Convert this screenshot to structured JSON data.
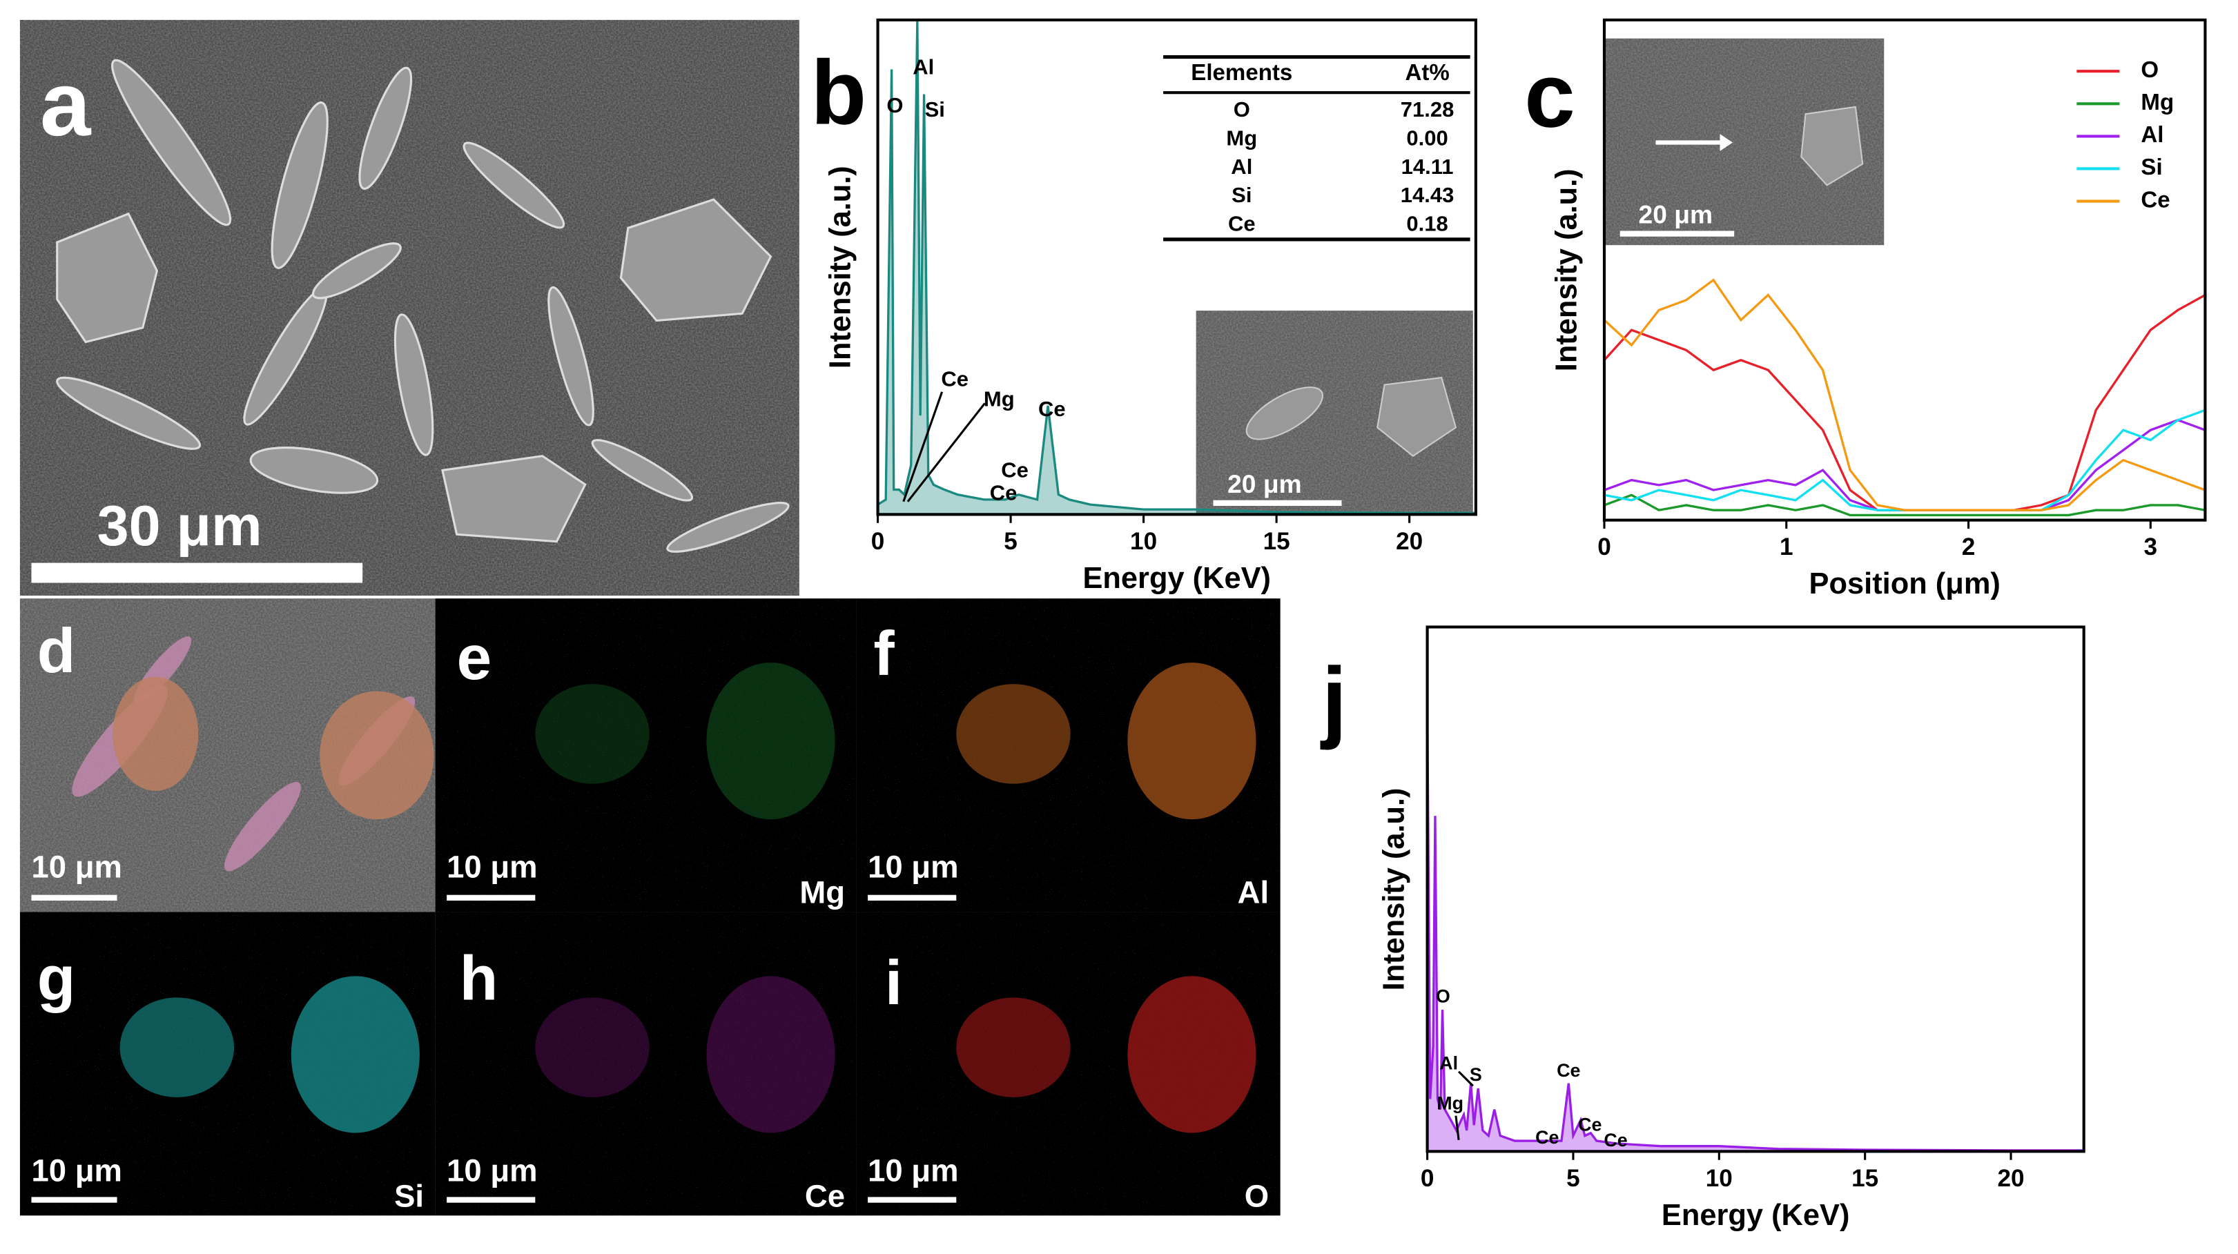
{
  "panel_labels": [
    "a",
    "b",
    "c",
    "d",
    "e",
    "f",
    "g",
    "h",
    "i",
    "j"
  ],
  "panel_a": {
    "scale_bar": "30 μm"
  },
  "maps": [
    {
      "scale_bar": "10 μm"
    },
    {
      "scale_bar": "10 μm",
      "element": "Mg"
    },
    {
      "scale_bar": "10 μm",
      "element": "Al"
    },
    {
      "scale_bar": "10 μm",
      "element": "Si"
    },
    {
      "scale_bar": "10 μm",
      "element": "Ce"
    },
    {
      "scale_bar": "10 μm",
      "element": "O"
    }
  ],
  "chart_data": [
    {
      "type": "line",
      "xlabel": "Energy (KeV)",
      "ylabel": "Intensity (a.u.)",
      "color": "#1a8a80",
      "x": [
        0,
        0.3,
        0.52,
        0.6,
        0.8,
        1.0,
        1.25,
        1.49,
        1.6,
        1.74,
        1.9,
        2.1,
        2.5,
        3,
        4,
        4.8,
        5.3,
        6.0,
        6.4,
        6.8,
        7.2,
        8,
        10,
        12,
        15,
        20,
        22.5
      ],
      "values": [
        2,
        3,
        90,
        5,
        5,
        4,
        10,
        100,
        20,
        85,
        8,
        6,
        5,
        4,
        3,
        3,
        4,
        3,
        22,
        4,
        3,
        2,
        1,
        1,
        0.5,
        0.3,
        0.3
      ],
      "xlim": [
        0,
        22.5
      ],
      "xticks": [
        0,
        5,
        10,
        15,
        20
      ],
      "ylim": [
        0,
        100
      ],
      "annotations": [
        "O",
        "Al",
        "Si",
        "Ce",
        "Mg",
        "Ce",
        "Ce",
        "Ce"
      ],
      "table": {
        "header": [
          "Elements",
          "At%"
        ],
        "rows": [
          [
            "O",
            "71.28"
          ],
          [
            "Mg",
            "0.00"
          ],
          [
            "Al",
            "14.11"
          ],
          [
            "Si",
            "14.43"
          ],
          [
            "Ce",
            "0.18"
          ]
        ]
      },
      "inset_scale_bar": "20 μm"
    },
    {
      "type": "multiline",
      "xlabel": "Position (μm)",
      "ylabel": "Intensity (a.u.)",
      "x": [
        0,
        0.15,
        0.3,
        0.45,
        0.6,
        0.75,
        0.9,
        1.05,
        1.2,
        1.35,
        1.5,
        1.65,
        1.8,
        1.95,
        2.1,
        2.25,
        2.4,
        2.55,
        2.7,
        2.85,
        3.0,
        3.15,
        3.3
      ],
      "series": [
        {
          "name": "O",
          "color": "#e8202a",
          "values": [
            32,
            38,
            36,
            34,
            30,
            32,
            30,
            24,
            18,
            6,
            2,
            2,
            2,
            2,
            2,
            2,
            3,
            5,
            22,
            30,
            38,
            42,
            45
          ]
        },
        {
          "name": "Mg",
          "color": "#1a9a2a",
          "values": [
            3,
            5,
            2,
            3,
            2,
            2,
            3,
            2,
            3,
            1,
            1,
            1,
            1,
            1,
            1,
            1,
            1,
            1,
            2,
            2,
            3,
            3,
            2
          ]
        },
        {
          "name": "Al",
          "color": "#a020f0",
          "values": [
            6,
            8,
            7,
            8,
            6,
            7,
            8,
            7,
            10,
            4,
            2,
            2,
            2,
            2,
            2,
            2,
            2,
            4,
            10,
            14,
            18,
            20,
            18
          ]
        },
        {
          "name": "Si",
          "color": "#10e0f0",
          "values": [
            5,
            4,
            6,
            5,
            4,
            6,
            5,
            4,
            8,
            3,
            2,
            2,
            2,
            2,
            2,
            2,
            2,
            5,
            12,
            18,
            16,
            20,
            22
          ]
        },
        {
          "name": "Ce",
          "color": "#f59a10",
          "values": [
            40,
            35,
            42,
            44,
            48,
            40,
            45,
            38,
            30,
            10,
            3,
            2,
            2,
            2,
            2,
            2,
            2,
            3,
            8,
            12,
            10,
            8,
            6
          ]
        }
      ],
      "xlim": [
        0,
        3.3
      ],
      "xticks": [
        0,
        1,
        2,
        3
      ],
      "ylim": [
        0,
        100
      ],
      "inset_scale_bar": "20 μm"
    },
    {
      "type": "line",
      "xlabel": "Energy (KeV)",
      "ylabel": "Intensity (a.u.)",
      "color": "#9a1ee6",
      "x": [
        0,
        0.1,
        0.2,
        0.27,
        0.35,
        0.45,
        0.52,
        0.6,
        0.8,
        1.0,
        1.25,
        1.35,
        1.49,
        1.6,
        1.74,
        1.9,
        2.1,
        2.3,
        2.5,
        3,
        4,
        4.6,
        4.84,
        5.0,
        5.26,
        5.4,
        5.6,
        5.8,
        6.5,
        8,
        10,
        12,
        15,
        20,
        22.5
      ],
      "values": [
        85,
        10,
        20,
        64,
        10,
        8,
        27,
        8,
        6,
        4,
        7,
        4,
        13,
        5,
        12,
        4,
        3,
        8,
        3,
        2,
        2,
        2,
        13,
        3,
        6,
        3,
        3.5,
        2,
        1.5,
        1,
        1,
        0.5,
        0.3,
        0.2,
        0.2
      ],
      "xlim": [
        0,
        22.5
      ],
      "xticks": [
        0,
        5,
        10,
        15,
        20
      ],
      "ylim": [
        0,
        100
      ],
      "annotations": [
        "O",
        "Al",
        "S",
        "Mg",
        "Ce",
        "Ce",
        "Ce",
        "Ce"
      ]
    }
  ]
}
